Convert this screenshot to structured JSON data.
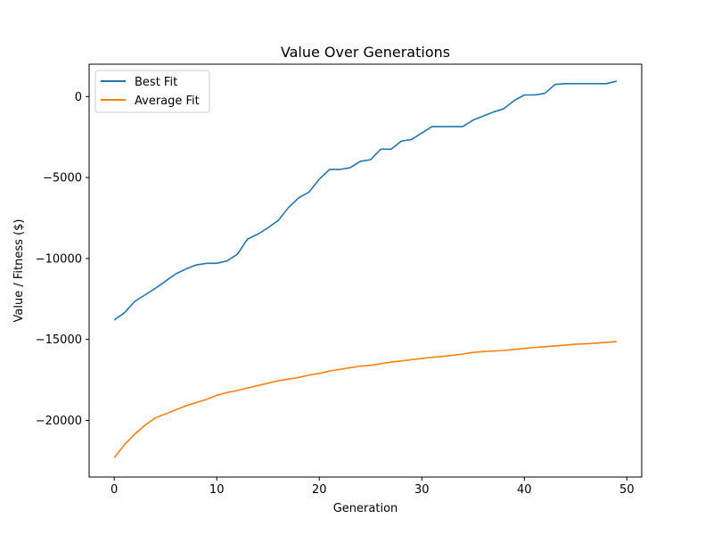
{
  "chart_data": {
    "type": "line",
    "title": "Value Over Generations",
    "xlabel": "Generation",
    "ylabel": "Value / Fitness ($)",
    "xlim": [
      -2.45,
      51.45
    ],
    "ylim": [
      -23500,
      2000
    ],
    "x_ticks": [
      0,
      10,
      20,
      30,
      40,
      50
    ],
    "x_tick_labels": [
      "0",
      "10",
      "20",
      "30",
      "40",
      "50"
    ],
    "y_ticks": [
      0,
      -5000,
      -10000,
      -15000,
      -20000
    ],
    "y_tick_labels": [
      "0",
      "−5000",
      "−10000",
      "−15000",
      "−20000"
    ],
    "grid": false,
    "legend_position": "upper-left",
    "x": [
      0,
      1,
      2,
      3,
      4,
      5,
      6,
      7,
      8,
      9,
      10,
      11,
      12,
      13,
      14,
      15,
      16,
      17,
      18,
      19,
      20,
      21,
      22,
      23,
      24,
      25,
      26,
      27,
      28,
      29,
      30,
      31,
      32,
      33,
      34,
      35,
      36,
      37,
      38,
      39,
      40,
      41,
      42,
      43,
      44,
      45,
      46,
      47,
      48,
      49
    ],
    "series": [
      {
        "name": "Best Fit",
        "color": "#1f77b4",
        "values": [
          -13800,
          -13350,
          -12650,
          -12250,
          -11850,
          -11400,
          -10950,
          -10650,
          -10400,
          -10300,
          -10300,
          -10150,
          -9750,
          -8800,
          -8500,
          -8100,
          -7650,
          -6850,
          -6250,
          -5900,
          -5100,
          -4500,
          -4500,
          -4400,
          -4000,
          -3900,
          -3250,
          -3250,
          -2750,
          -2650,
          -2250,
          -1850,
          -1850,
          -1850,
          -1850,
          -1450,
          -1200,
          -950,
          -750,
          -250,
          100,
          100,
          200,
          750,
          800,
          800,
          800,
          800,
          800,
          950
        ]
      },
      {
        "name": "Average Fit",
        "color": "#ff7f0e",
        "values": [
          -22300,
          -21500,
          -20850,
          -20300,
          -19850,
          -19600,
          -19350,
          -19100,
          -18900,
          -18700,
          -18450,
          -18280,
          -18150,
          -18000,
          -17850,
          -17700,
          -17550,
          -17450,
          -17350,
          -17200,
          -17100,
          -16950,
          -16850,
          -16750,
          -16650,
          -16600,
          -16500,
          -16400,
          -16330,
          -16250,
          -16180,
          -16100,
          -16050,
          -15980,
          -15900,
          -15800,
          -15750,
          -15720,
          -15680,
          -15620,
          -15550,
          -15500,
          -15450,
          -15400,
          -15350,
          -15300,
          -15270,
          -15230,
          -15180,
          -15130
        ]
      }
    ]
  }
}
